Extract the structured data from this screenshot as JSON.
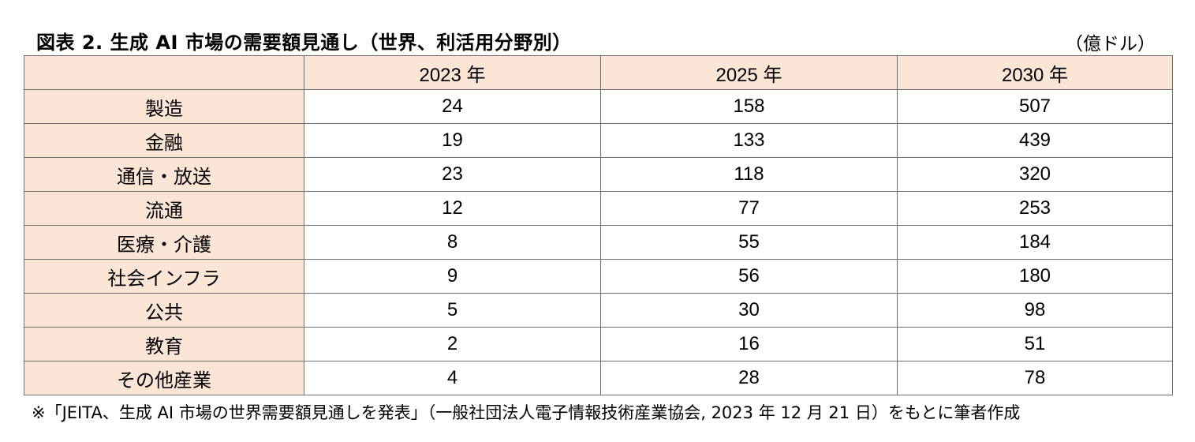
{
  "title": "図表 2.  生成 AI 市場の需要額見通し（世界、利活用分野別）",
  "unit": "（億ドル）",
  "table": {
    "corner": "",
    "columns": [
      "2023 年",
      "2025 年",
      "2030 年"
    ],
    "rows": [
      {
        "label": "製造",
        "values": [
          "24",
          "158",
          "507"
        ]
      },
      {
        "label": "金融",
        "values": [
          "19",
          "133",
          "439"
        ]
      },
      {
        "label": "通信・放送",
        "values": [
          "23",
          "118",
          "320"
        ]
      },
      {
        "label": "流通",
        "values": [
          "12",
          "77",
          "253"
        ]
      },
      {
        "label": "医療・介護",
        "values": [
          "8",
          "55",
          "184"
        ]
      },
      {
        "label": "社会インフラ",
        "values": [
          "9",
          "56",
          "180"
        ]
      },
      {
        "label": "公共",
        "values": [
          "5",
          "30",
          "98"
        ]
      },
      {
        "label": "教育",
        "values": [
          "2",
          "16",
          "51"
        ]
      },
      {
        "label": "その他産業",
        "values": [
          "4",
          "28",
          "78"
        ]
      }
    ]
  },
  "footnote": "※「JEITA、生成 AI 市場の世界需要額見通しを発表」（一般社団法人電子情報技術産業協会, 2023 年 12 月 21 日）をもとに筆者作成",
  "colors": {
    "header_fill": "#fbe5d6",
    "border": "#6e6e6e"
  }
}
